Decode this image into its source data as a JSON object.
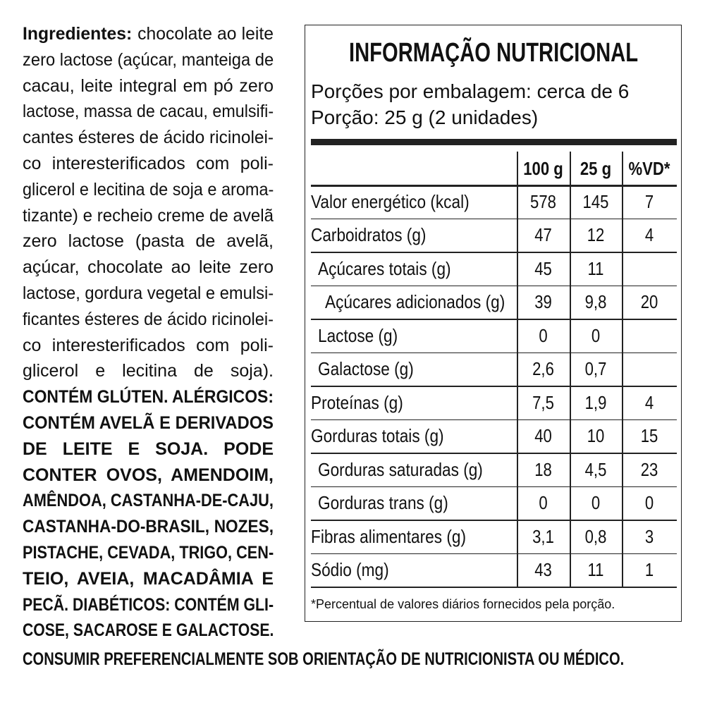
{
  "ingredients": {
    "label": "Ingredientes:",
    "lines": [
      "chocolate ao leite",
      "zero lactose (açúcar, manteiga de",
      "cacau, leite integral em pó zero",
      "lactose, massa de cacau, emulsifi-",
      "cantes ésteres de ácido ricinolei-",
      "co interesterificados com poli-",
      "glicerol e lecitina de soja e aroma-",
      "tizante) e recheio creme de avelã",
      "zero lactose (pasta de avelã,",
      "açúcar, chocolate ao leite zero",
      "lactose, gordura vegetal e emulsi-",
      "ficantes ésteres de ácido ricinolei-",
      "co interesterificados com poli-",
      "glicerol e lecitina de soja)."
    ],
    "warning_lines": [
      "CONTÉM GLÚTEN. ALÉRGICOS:",
      "CONTÉM AVELÃ E DERIVADOS",
      "DE LEITE E SOJA. PODE",
      "CONTER OVOS, AMENDOIM,",
      "AMÊNDOA, CASTANHA-DE-CAJU,",
      "CASTANHA-DO-BRASIL, NOZES,",
      "PISTACHE, CEVADA, TRIGO, CEN-",
      "TEIO, AVEIA, MACADÂMIA E",
      "PECÃ. DIABÉTICOS: CONTÉM GLI-",
      "COSE, SACAROSE E GALACTOSE."
    ]
  },
  "footer": "CONSUMIR PREFERENCIALMENTE SOB ORIENTAÇÃO DE NUTRICIONISTA OU MÉDICO.",
  "nutrition": {
    "title": "INFORMAÇÃO NUTRICIONAL",
    "servings": [
      "Porções por embalagem: cerca de 6",
      "Porção: 25 g (2 unidades)"
    ],
    "columns": [
      "100 g",
      "25 g",
      "%VD*"
    ],
    "rows": [
      {
        "label": "Valor energético (kcal)",
        "level": 0,
        "values": [
          578,
          145,
          7
        ]
      },
      {
        "label": "Carboidratos (g)",
        "level": 0,
        "values": [
          47,
          12,
          4
        ]
      },
      {
        "label": "Açúcares totais (g)",
        "level": 1,
        "values": [
          45,
          11,
          null
        ]
      },
      {
        "label": "Açúcares adicionados (g)",
        "level": 2,
        "values": [
          39,
          "9,8",
          20
        ]
      },
      {
        "label": "Lactose (g)",
        "level": 1,
        "values": [
          0,
          0,
          null
        ]
      },
      {
        "label": "Galactose (g)",
        "level": 1,
        "values": [
          "2,6",
          "0,7",
          null
        ]
      },
      {
        "label": "Proteínas (g)",
        "level": 0,
        "values": [
          "7,5",
          "1,9",
          4
        ]
      },
      {
        "label": "Gorduras totais (g)",
        "level": 0,
        "values": [
          40,
          10,
          15
        ]
      },
      {
        "label": "Gorduras saturadas (g)",
        "level": 1,
        "values": [
          18,
          "4,5",
          23
        ]
      },
      {
        "label": "Gorduras trans (g)",
        "level": 1,
        "values": [
          0,
          0,
          0
        ]
      },
      {
        "label": "Fibras alimentares (g)",
        "level": 0,
        "values": [
          "3,1",
          "0,8",
          3
        ]
      },
      {
        "label": "Sódio (mg)",
        "level": 0,
        "values": [
          43,
          11,
          1
        ]
      }
    ],
    "footnote": "*Percentual de valores diários fornecidos pela porção."
  }
}
